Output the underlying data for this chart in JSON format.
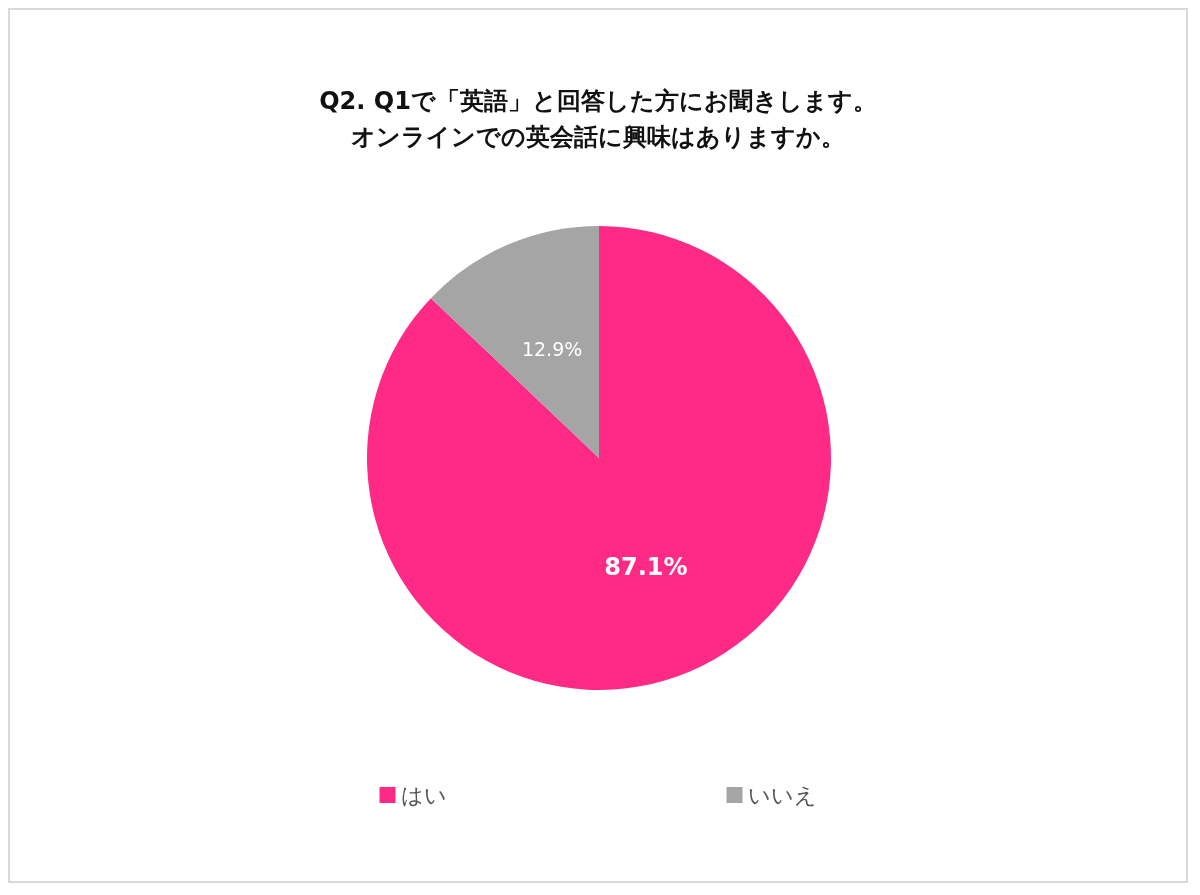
{
  "chart_data": {
    "type": "pie",
    "title": "Q2. Q1で「英語」と回答した方にお聞きします。",
    "subtitle": "オンラインでの英会話に興味はありますか。",
    "categories": [
      "はい",
      "いいえ"
    ],
    "values": [
      87.1,
      12.9
    ],
    "colors": [
      "#ff2a85",
      "#a5a5a5"
    ],
    "value_labels": [
      "87.1%",
      "12.9%"
    ],
    "legend": "bottom"
  }
}
